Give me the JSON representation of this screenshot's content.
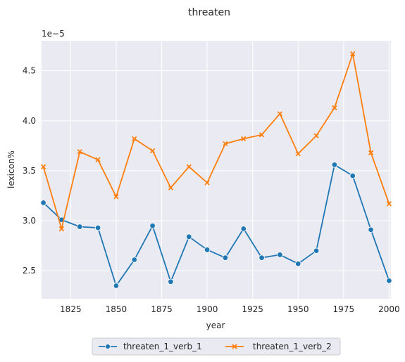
{
  "chart_data": {
    "type": "line",
    "title": "threaten",
    "xlabel": "year",
    "ylabel": "lexicon%",
    "y_scale_label": "1e−5",
    "xlim": [
      1809,
      2001
    ],
    "ylim": [
      2.22,
      4.8
    ],
    "x_ticks": [
      1825,
      1850,
      1875,
      1900,
      1925,
      1950,
      1975,
      2000
    ],
    "y_ticks": [
      2.5,
      3.0,
      3.5,
      4.0,
      4.5
    ],
    "y_tick_labels": [
      "2.5",
      "3.0",
      "3.5",
      "4.0",
      "4.5"
    ],
    "grid": true,
    "legend_position": "bottom-center",
    "x": [
      1810,
      1820,
      1830,
      1840,
      1850,
      1860,
      1870,
      1880,
      1890,
      1900,
      1910,
      1920,
      1930,
      1940,
      1950,
      1960,
      1970,
      1980,
      1990,
      2000
    ],
    "series": [
      {
        "name": "threaten_1_verb_1",
        "color": "#1f77b4",
        "marker": "circle",
        "values": [
          3.18,
          3.01,
          2.94,
          2.93,
          2.35,
          2.61,
          2.95,
          2.39,
          2.84,
          2.71,
          2.63,
          2.92,
          2.63,
          2.66,
          2.57,
          2.7,
          3.56,
          3.45,
          2.91,
          2.4
        ]
      },
      {
        "name": "threaten_1_verb_2",
        "color": "#ff7f0e",
        "marker": "x",
        "values": [
          3.54,
          2.92,
          3.69,
          3.61,
          3.24,
          3.82,
          3.7,
          3.33,
          3.54,
          3.38,
          3.77,
          3.82,
          3.86,
          4.07,
          3.67,
          3.85,
          4.13,
          4.67,
          3.68,
          3.17
        ]
      }
    ]
  }
}
